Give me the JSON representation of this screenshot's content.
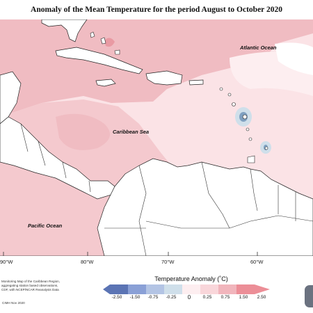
{
  "title": "Anomaly of the Mean Temperature for the period August to October 2020",
  "ocean_labels": {
    "atlantic": "Atlantic Ocean",
    "caribbean": "Caribbean Sea",
    "pacific": "Pacific Ocean"
  },
  "longitude_labels": [
    "90°W",
    "80°W",
    "70°W",
    "60°W"
  ],
  "credits": [
    "Monitoring Map of the Caribbean Region,",
    "aggregating station based observations,",
    "CDF, with NCEP/NCAR Reanalysis Data"
  ],
  "footer_note": "CIMH Nov 2020",
  "legend": {
    "title": "Temperature Anomaly (˚C)",
    "ticks": [
      "-2.50",
      "-1.50",
      "-0.75",
      "-0.25",
      "0",
      "0.25",
      "0.75",
      "1.50",
      "2.50"
    ],
    "colors": [
      "#5b74b4",
      "#8aa0d6",
      "#b3c4e4",
      "#cfdfea",
      "#fdeef0",
      "#f9d6da",
      "#f1b5bc",
      "#ec8e97"
    ]
  },
  "colors": {
    "land": "#ffffff",
    "anomaly_light": "#fbe3e6",
    "anomaly_medium": "#f0bcc2",
    "anomaly_strong": "#e99aa3",
    "anomaly_cool": "#b8cde0",
    "anomaly_cool_strong": "#7fa0c0"
  }
}
